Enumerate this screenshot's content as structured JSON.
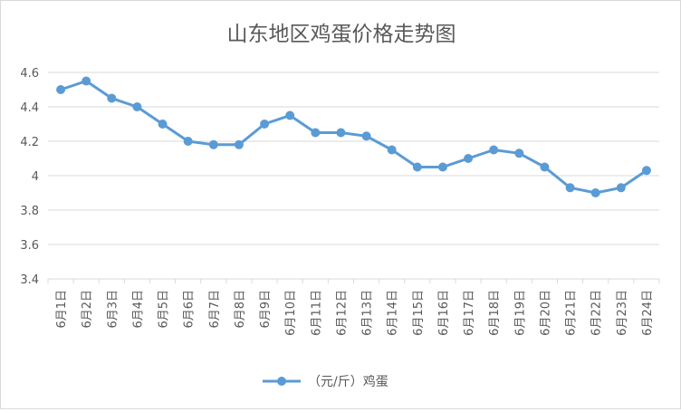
{
  "chart_data": {
    "type": "line",
    "title": "山东地区鸡蛋价格走势图",
    "xlabel": "",
    "ylabel": "",
    "categories": [
      "6月1日",
      "6月2日",
      "6月3日",
      "6月4日",
      "6月5日",
      "6月6日",
      "6月7日",
      "6月8日",
      "6月9日",
      "6月10日",
      "6月11日",
      "6月12日",
      "6月13日",
      "6月14日",
      "6月15日",
      "6月16日",
      "6月17日",
      "6月18日",
      "6月19日",
      "6月20日",
      "6月21日",
      "6月22日",
      "6月23日",
      "6月24日"
    ],
    "series": [
      {
        "name": "（元/斤）鸡蛋",
        "color": "#5B9BD5",
        "values": [
          4.5,
          4.55,
          4.45,
          4.4,
          4.3,
          4.2,
          4.18,
          4.18,
          4.3,
          4.35,
          4.25,
          4.25,
          4.23,
          4.15,
          4.05,
          4.05,
          4.1,
          4.15,
          4.13,
          4.05,
          3.93,
          3.9,
          3.93,
          4.03
        ]
      }
    ],
    "yticks": [
      "3.4",
      "3.6",
      "3.8",
      "4",
      "4.2",
      "4.4",
      "4.6"
    ],
    "ylim": [
      3.4,
      4.6
    ],
    "grid": true,
    "legend": "bottom"
  }
}
